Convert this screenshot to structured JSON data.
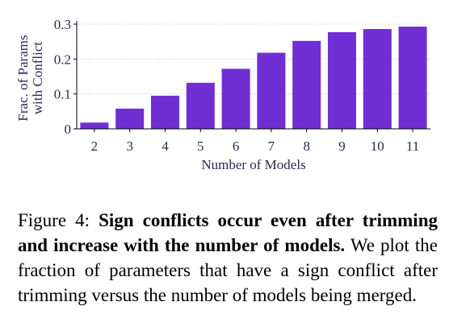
{
  "chart_data": {
    "type": "bar",
    "categories": [
      "2",
      "3",
      "4",
      "5",
      "6",
      "7",
      "8",
      "9",
      "10",
      "11"
    ],
    "values": [
      0.018,
      0.058,
      0.095,
      0.132,
      0.172,
      0.218,
      0.252,
      0.277,
      0.286,
      0.293
    ],
    "xlabel": "Number of Models",
    "ylabel_lines": [
      "Frac. of Params",
      "with Conflict"
    ],
    "yticks": [
      "0",
      "0.1",
      "0.2",
      "0.3"
    ],
    "ytick_values": [
      0,
      0.1,
      0.2,
      0.3
    ],
    "ylim": [
      0,
      0.3
    ],
    "grid": "horizontal dotted",
    "bar_color": "#6f2fd4"
  },
  "caption": {
    "label": "Figure 4:",
    "bold_text": "Sign conflicts occur even after trimming and increase with the number of models.",
    "body_text": "We plot the fraction of parameters that have a sign conflict after trimming versus the number of models being merged."
  }
}
